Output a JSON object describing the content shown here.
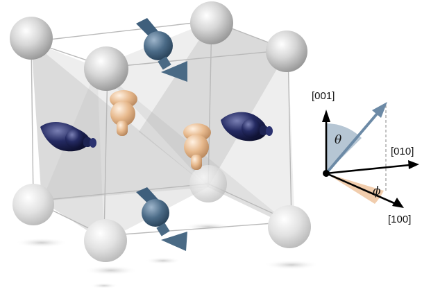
{
  "axes": {
    "z_label": "[001]",
    "y_label": "[010]",
    "x_label": "[100]",
    "theta_label": "θ",
    "phi_label": "ϕ"
  },
  "colors": {
    "sphere": "#c8c8c8",
    "spin_arrow": "#4a6a85",
    "dark_moment": "#1c2150",
    "copper_moment": "#e2b48a",
    "axis_vector": "#6c8aa6",
    "theta_fill": "#a9bccd",
    "phi_fill": "#f0c8a4"
  }
}
